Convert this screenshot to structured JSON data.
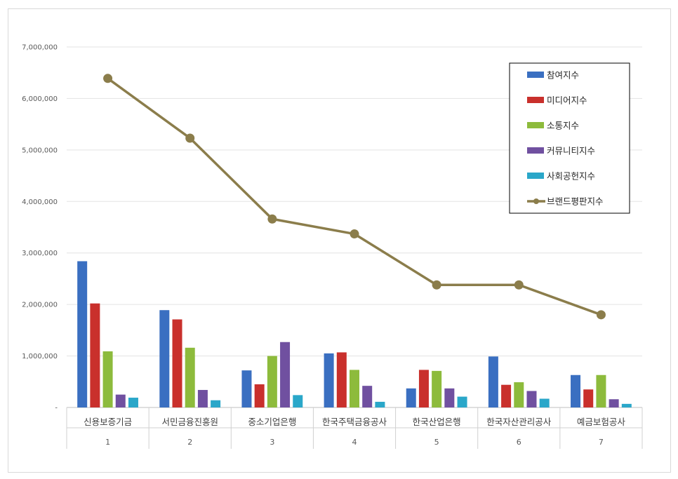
{
  "chart_data": {
    "type": "bar",
    "categories": [
      "신용보증기금",
      "서민금융진흥원",
      "중소기업은행",
      "한국주택금융공사",
      "한국산업은행",
      "한국자산관리공사",
      "예금보험공사"
    ],
    "category_numbers": [
      "1",
      "2",
      "3",
      "4",
      "5",
      "6",
      "7"
    ],
    "ylim": [
      0,
      7000000
    ],
    "ytick_labels": [
      "-",
      "1,000,000",
      "2,000,000",
      "3,000,000",
      "4,000,000",
      "5,000,000",
      "6,000,000",
      "7,000,000"
    ],
    "grid": true,
    "legend_position": "top-right",
    "series": [
      {
        "name": "참여지수",
        "type": "bar",
        "color": "#3a6fc1",
        "values": [
          2840000,
          1890000,
          720000,
          1050000,
          370000,
          990000,
          630000
        ]
      },
      {
        "name": "미디어지수",
        "type": "bar",
        "color": "#c9302c",
        "values": [
          2020000,
          1710000,
          450000,
          1070000,
          730000,
          440000,
          350000
        ]
      },
      {
        "name": "소통지수",
        "type": "bar",
        "color": "#8dbb3c",
        "values": [
          1090000,
          1160000,
          1000000,
          730000,
          710000,
          490000,
          630000
        ]
      },
      {
        "name": "커뮤니티지수",
        "type": "bar",
        "color": "#7050a0",
        "values": [
          250000,
          340000,
          1270000,
          420000,
          370000,
          320000,
          160000
        ]
      },
      {
        "name": "사회공헌지수",
        "type": "bar",
        "color": "#2aa7c9",
        "values": [
          190000,
          140000,
          240000,
          110000,
          210000,
          170000,
          70000
        ]
      },
      {
        "name": "브랜드평판지수",
        "type": "line",
        "color": "#8b7d4b",
        "values": [
          6390000,
          5230000,
          3660000,
          3370000,
          2380000,
          2380000,
          1800000
        ]
      }
    ]
  }
}
